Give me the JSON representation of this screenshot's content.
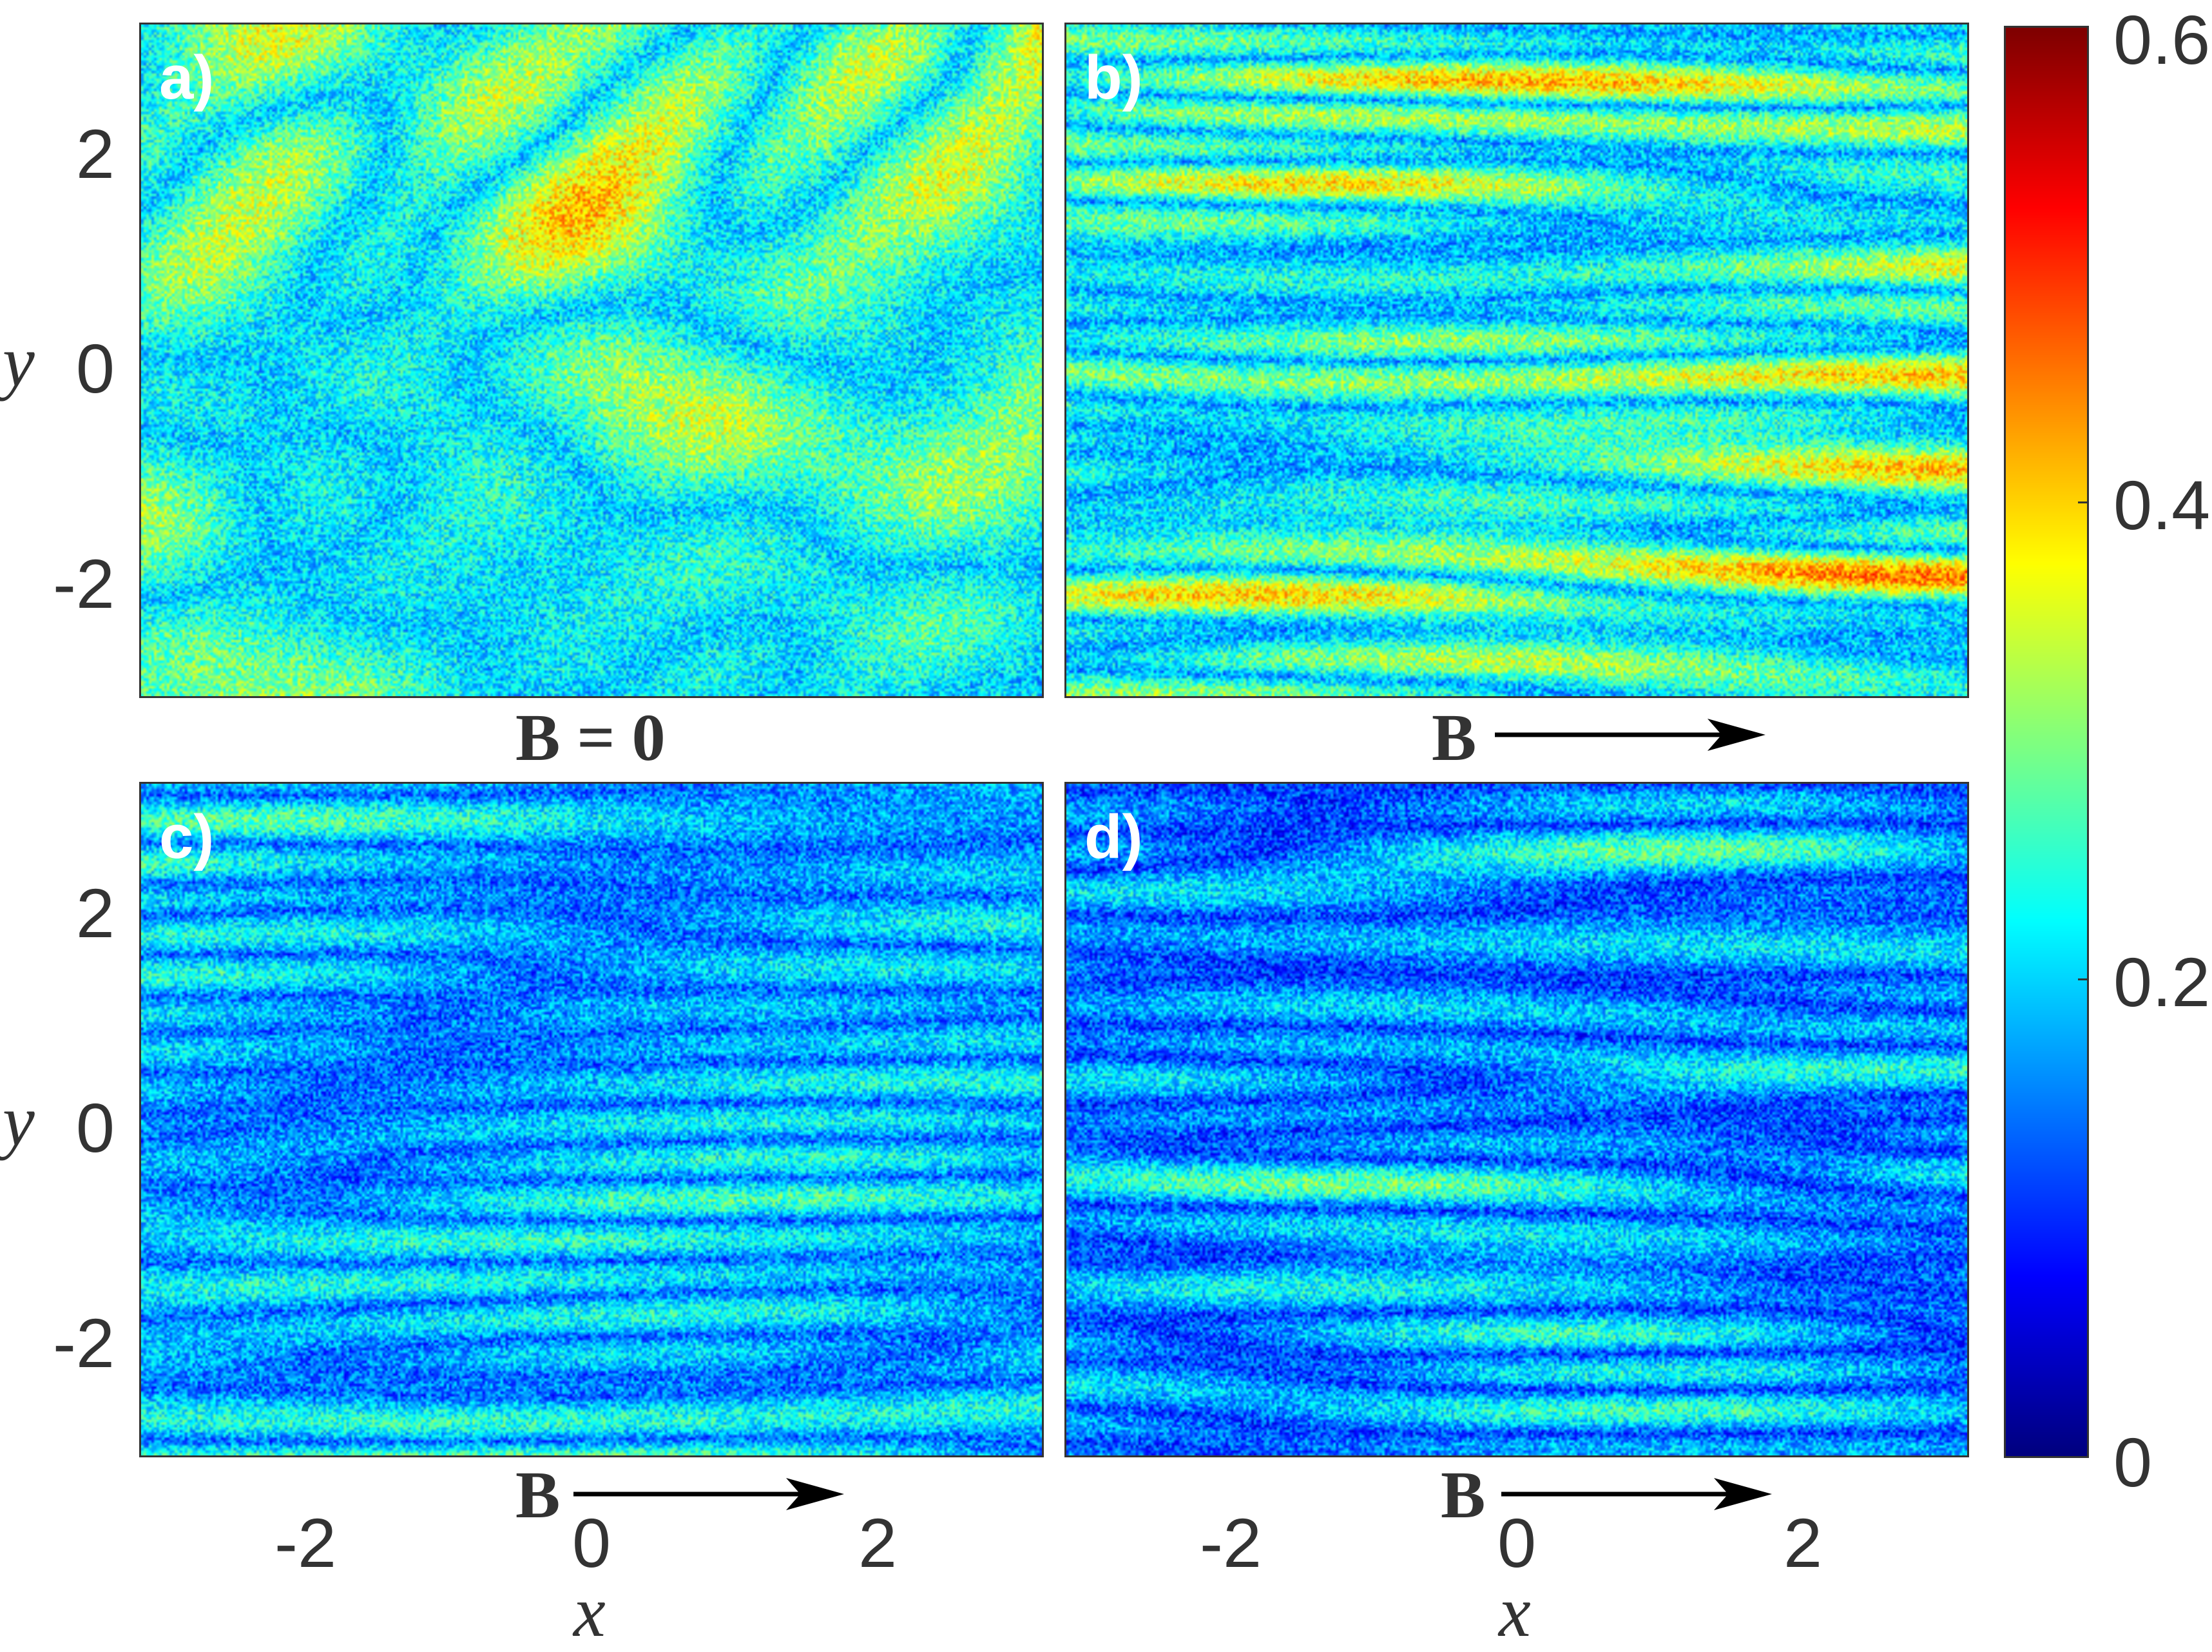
{
  "chart_data": [
    {
      "type": "heatmap",
      "panel_label": "a)",
      "field_label": "B = 0",
      "field_direction": "none",
      "pattern": "isotropic",
      "xlim": [
        -3.14,
        3.14
      ],
      "ylim": [
        -3.14,
        3.14
      ],
      "yticks": [
        "2",
        "0",
        "-2"
      ],
      "ylabel": "y",
      "xticks": [],
      "xlabel": ""
    },
    {
      "type": "heatmap",
      "panel_label": "b)",
      "field_label": "B",
      "field_direction": "right",
      "pattern": "streaks-strong",
      "xlim": [
        -3.14,
        3.14
      ],
      "ylim": [
        -3.14,
        3.14
      ],
      "yticks": [],
      "ylabel": "",
      "xticks": [],
      "xlabel": ""
    },
    {
      "type": "heatmap",
      "panel_label": "c)",
      "field_label": "B",
      "field_direction": "right",
      "pattern": "streaks-medium",
      "xlim": [
        -3.14,
        3.14
      ],
      "ylim": [
        -3.14,
        3.14
      ],
      "yticks": [
        "2",
        "0",
        "-2"
      ],
      "ylabel": "y",
      "xticks": [
        "-2",
        "0",
        "2"
      ],
      "xlabel": "x"
    },
    {
      "type": "heatmap",
      "panel_label": "d)",
      "field_label": "B",
      "field_direction": "right",
      "pattern": "streaks-weak",
      "xlim": [
        -3.14,
        3.14
      ],
      "ylim": [
        -3.14,
        3.14
      ],
      "yticks": [],
      "ylabel": "",
      "xticks": [
        "-2",
        "0",
        "2"
      ],
      "xlabel": "x"
    }
  ],
  "colorbar": {
    "colormap": "jet",
    "range": [
      0,
      0.6
    ],
    "ticks": [
      "0.6",
      "0.4",
      "0.2",
      "0"
    ]
  }
}
